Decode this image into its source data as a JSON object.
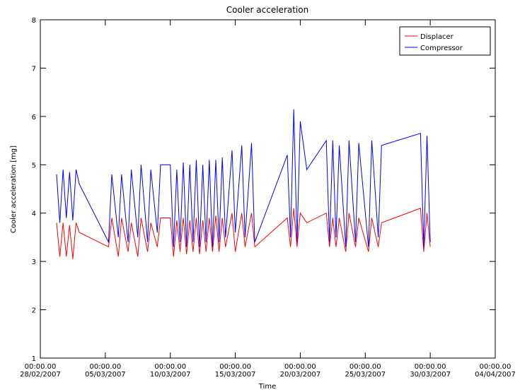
{
  "chart_data": {
    "type": "line",
    "title": "Cooler acceleration",
    "x_label": "Time",
    "y_label": "Cooler acceleration [mg]",
    "xlim": [
      "2007-02-28T00:00",
      "2007-04-04T00:00"
    ],
    "xticks": [
      {
        "value": "2007-02-28T00:00",
        "label": "00:00.00\n28/02/2007"
      },
      {
        "value": "2007-03-05T00:00",
        "label": "00:00.00\n05/03/2007"
      },
      {
        "value": "2007-03-10T00:00",
        "label": "00:00.00\n10/03/2007"
      },
      {
        "value": "2007-03-15T00:00",
        "label": "00:00.00\n15/03/2007"
      },
      {
        "value": "2007-03-20T00:00",
        "label": "00:00.00\n20/03/2007"
      },
      {
        "value": "2007-03-25T00:00",
        "label": "00:00.00\n25/03/2007"
      },
      {
        "value": "2007-03-30T00:00",
        "label": "00:00.00\n30/03/2007"
      },
      {
        "value": "2007-04-04T00:00",
        "label": "00:00.00\n04/04/2007"
      }
    ],
    "ylim": [
      1,
      8
    ],
    "yticks": [
      1,
      2,
      3,
      4,
      5,
      6,
      7,
      8
    ],
    "legend": "upper right",
    "x": [
      "2007-03-01T06:00",
      "2007-03-01T12:00",
      "2007-03-01T18:00",
      "2007-03-02T00:00",
      "2007-03-02T06:00",
      "2007-03-02T12:00",
      "2007-03-02T18:00",
      "2007-03-03T00:00",
      "2007-03-05T06:00",
      "2007-03-05T12:00",
      "2007-03-06T00:00",
      "2007-03-06T06:00",
      "2007-03-06T18:00",
      "2007-03-07T00:00",
      "2007-03-07T12:00",
      "2007-03-07T18:00",
      "2007-03-08T06:00",
      "2007-03-08T12:00",
      "2007-03-09T00:00",
      "2007-03-09T06:00",
      "2007-03-10T00:00",
      "2007-03-10T06:00",
      "2007-03-10T12:00",
      "2007-03-10T18:00",
      "2007-03-11T00:00",
      "2007-03-11T06:00",
      "2007-03-11T12:00",
      "2007-03-11T18:00",
      "2007-03-12T00:00",
      "2007-03-12T06:00",
      "2007-03-12T12:00",
      "2007-03-12T18:00",
      "2007-03-13T00:00",
      "2007-03-13T06:00",
      "2007-03-13T12:00",
      "2007-03-13T18:00",
      "2007-03-14T00:00",
      "2007-03-14T06:00",
      "2007-03-14T18:00",
      "2007-03-15T00:00",
      "2007-03-15T12:00",
      "2007-03-15T18:00",
      "2007-03-16T06:00",
      "2007-03-16T12:00",
      "2007-03-19T00:00",
      "2007-03-19T06:00",
      "2007-03-19T12:00",
      "2007-03-19T18:00",
      "2007-03-20T00:00",
      "2007-03-20T12:00",
      "2007-03-22T00:00",
      "2007-03-22T06:00",
      "2007-03-22T12:00",
      "2007-03-22T18:00",
      "2007-03-23T00:00",
      "2007-03-23T12:00",
      "2007-03-23T18:00",
      "2007-03-24T06:00",
      "2007-03-24T12:00",
      "2007-03-25T06:00",
      "2007-03-25T12:00",
      "2007-03-26T00:00",
      "2007-03-26T06:00",
      "2007-03-29T06:00",
      "2007-03-29T12:00",
      "2007-03-29T18:00",
      "2007-03-30T00:00"
    ],
    "series": [
      {
        "name": "Displacer",
        "color": "#ff0000",
        "values": [
          3.8,
          3.1,
          3.8,
          3.1,
          3.75,
          3.05,
          3.8,
          3.6,
          3.3,
          3.9,
          3.1,
          3.9,
          3.2,
          3.8,
          3.1,
          3.9,
          3.2,
          3.8,
          3.3,
          3.9,
          3.9,
          3.1,
          3.85,
          3.2,
          3.9,
          3.15,
          3.85,
          3.2,
          3.9,
          3.15,
          3.85,
          3.2,
          3.9,
          3.2,
          3.95,
          3.2,
          3.9,
          3.3,
          4.0,
          3.2,
          4.0,
          3.3,
          4.0,
          3.3,
          3.9,
          3.3,
          4.1,
          3.3,
          4.0,
          3.8,
          4.0,
          3.3,
          3.9,
          3.3,
          3.9,
          3.2,
          4.0,
          3.3,
          3.9,
          3.2,
          3.9,
          3.3,
          3.8,
          4.1,
          3.2,
          4.0,
          3.3
        ]
      },
      {
        "name": "Compressor",
        "color": "#0000ff",
        "values": [
          4.8,
          3.8,
          4.9,
          3.9,
          4.85,
          3.85,
          4.9,
          4.6,
          3.4,
          4.8,
          3.5,
          4.8,
          3.4,
          4.9,
          3.5,
          5.0,
          3.4,
          4.9,
          3.6,
          5.0,
          5.0,
          3.3,
          4.9,
          3.4,
          5.05,
          3.3,
          5.0,
          3.4,
          5.1,
          3.3,
          5.0,
          3.4,
          5.1,
          3.3,
          5.1,
          3.4,
          5.15,
          3.5,
          5.3,
          3.6,
          5.4,
          3.5,
          5.45,
          3.4,
          5.2,
          3.5,
          6.15,
          3.4,
          5.9,
          4.9,
          5.5,
          3.4,
          5.5,
          3.5,
          5.4,
          3.3,
          5.5,
          3.4,
          5.45,
          3.3,
          5.5,
          3.5,
          5.4,
          5.65,
          3.3,
          5.6,
          3.4
        ]
      }
    ]
  }
}
